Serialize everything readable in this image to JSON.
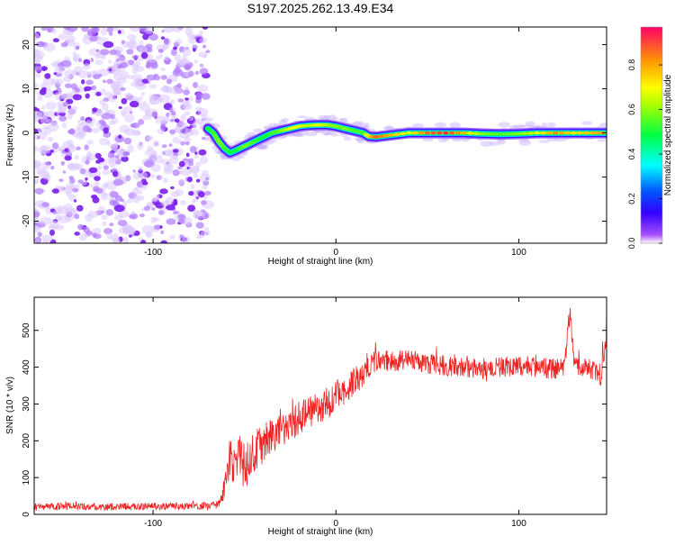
{
  "title": "S197.2025.262.13.49.E34",
  "chart_data": [
    {
      "type": "heatmap",
      "title": "S197.2025.262.13.49.E34",
      "xlabel": "Height of straight line (km)",
      "ylabel": "Frequency (Hz)",
      "xlim": [
        -165,
        148
      ],
      "ylim": [
        -25,
        24
      ],
      "xticks": [
        "-100",
        "0",
        "100"
      ],
      "xtick_values": [
        -100,
        0,
        100
      ],
      "yticks": [
        "20",
        "10",
        "0",
        "-10",
        "-20"
      ],
      "ytick_values": [
        20,
        10,
        0,
        -10,
        -20
      ],
      "colorbar": {
        "label": "Normalized spectral amplitude",
        "ticks": [
          "0.0",
          "0.2",
          "0.4",
          "0.6",
          "0.8"
        ],
        "tick_values": [
          0.0,
          0.2,
          0.4,
          0.6,
          0.8
        ],
        "range": [
          0,
          0.97
        ],
        "colors": [
          "#ffffff",
          "#8a00ff",
          "#0000ff",
          "#00ffff",
          "#00ff00",
          "#ffff00",
          "#ff8000",
          "#ff0040"
        ]
      },
      "noise_region_x": [
        -165,
        -70
      ],
      "ridge": {
        "x": [
          -70,
          -67,
          -64,
          -61,
          -58,
          -55,
          -50,
          -45,
          -40,
          -35,
          -30,
          -25,
          -20,
          -15,
          -10,
          -5,
          0,
          5,
          10,
          15,
          18,
          22,
          30,
          40,
          50,
          60,
          70,
          80,
          90,
          100,
          110,
          120,
          130,
          140,
          148
        ],
        "freq": [
          1,
          0,
          -2,
          -3.5,
          -4.5,
          -4,
          -3,
          -2,
          -1,
          0,
          0.5,
          1,
          1.5,
          1.7,
          1.8,
          1.8,
          1.5,
          1,
          0.5,
          0,
          -0.8,
          -0.9,
          -0.5,
          0,
          0,
          0,
          0,
          -0.2,
          -0.3,
          -0.2,
          0,
          0,
          0,
          0,
          0
        ],
        "amplitude": [
          0.5,
          0.55,
          0.6,
          0.55,
          0.5,
          0.5,
          0.6,
          0.55,
          0.5,
          0.55,
          0.6,
          0.7,
          0.7,
          0.65,
          0.7,
          0.65,
          0.6,
          0.6,
          0.55,
          0.55,
          0.75,
          0.9,
          0.8,
          0.7,
          0.9,
          0.95,
          0.8,
          0.6,
          0.55,
          0.6,
          0.7,
          0.85,
          0.75,
          0.8,
          0.85
        ]
      }
    },
    {
      "type": "line",
      "xlabel": "Height of straight line (km)",
      "ylabel": "SNR (10 * v/v)",
      "xlim": [
        -165,
        148
      ],
      "ylim": [
        0,
        590
      ],
      "xticks": [
        "-100",
        "0",
        "100"
      ],
      "xtick_values": [
        -100,
        0,
        100
      ],
      "yticks": [
        "0",
        "100",
        "200",
        "300",
        "400",
        "500"
      ],
      "ytick_values": [
        0,
        100,
        200,
        300,
        400,
        500
      ],
      "color": "#ee2222",
      "series": [
        {
          "name": "SNR",
          "x": [
            -165,
            -150,
            -130,
            -110,
            -90,
            -70,
            -64,
            -60,
            -58,
            -55,
            -52,
            -50,
            -45,
            -40,
            -35,
            -30,
            -25,
            -20,
            -15,
            -10,
            -5,
            0,
            5,
            10,
            15,
            18,
            20,
            25,
            30,
            40,
            50,
            60,
            70,
            80,
            90,
            100,
            110,
            120,
            125,
            128,
            130,
            135,
            140,
            145,
            148
          ],
          "values": [
            20,
            22,
            20,
            21,
            22,
            22,
            25,
            80,
            150,
            130,
            160,
            120,
            170,
            190,
            210,
            230,
            250,
            260,
            280,
            290,
            300,
            320,
            340,
            360,
            380,
            400,
            410,
            420,
            415,
            420,
            410,
            405,
            400,
            395,
            400,
            405,
            400,
            395,
            400,
            560,
            410,
            400,
            390,
            380,
            500
          ],
          "noise": [
            10,
            10,
            10,
            10,
            10,
            10,
            12,
            45,
            60,
            60,
            60,
            60,
            55,
            55,
            50,
            50,
            50,
            50,
            45,
            45,
            45,
            45,
            40,
            40,
            35,
            30,
            30,
            30,
            28,
            28,
            28,
            28,
            28,
            28,
            28,
            28,
            28,
            28,
            28,
            30,
            28,
            28,
            30,
            35,
            40
          ]
        }
      ]
    }
  ]
}
